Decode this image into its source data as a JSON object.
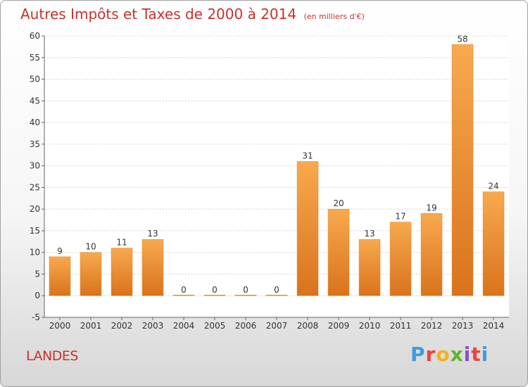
{
  "chart_data": {
    "type": "bar",
    "title": "Autres Impôts et Taxes de 2000 à 2014",
    "subtitle": "(en milliers d'€)",
    "categories": [
      "2000",
      "2001",
      "2002",
      "2003",
      "2004",
      "2005",
      "2006",
      "2007",
      "2008",
      "2009",
      "2010",
      "2011",
      "2012",
      "2013",
      "2014"
    ],
    "values": [
      9,
      10,
      11,
      13,
      0,
      0,
      0,
      0,
      31,
      20,
      13,
      17,
      19,
      58,
      24
    ],
    "ylim": [
      -5,
      60
    ],
    "yticks": [
      -5,
      0,
      5,
      10,
      15,
      20,
      25,
      30,
      35,
      40,
      45,
      50,
      55,
      60
    ],
    "grid": true,
    "bar_color": "#f0962f"
  },
  "footer": {
    "region": "LANDES",
    "logo": "Proxiti"
  },
  "logo_colors": [
    "#3e9be0",
    "#e8453c",
    "#f2b21b",
    "#5cb530",
    "#8a4fc6",
    "#e8453c",
    "#3e9be0"
  ]
}
